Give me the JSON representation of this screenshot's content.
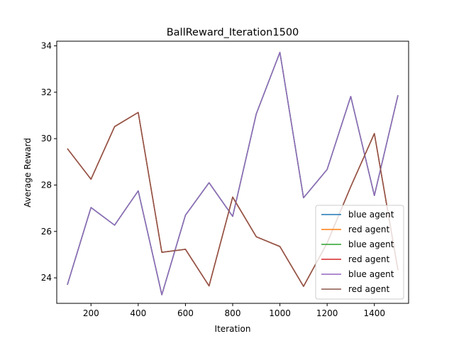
{
  "chart_data": {
    "type": "line",
    "title": "BallReward_Iteration1500",
    "xlabel": "Iteration",
    "ylabel": "Average Reward",
    "xlim": [
      55,
      1545
    ],
    "ylim": [
      22.9,
      34.2
    ],
    "xticks": [
      200,
      400,
      600,
      800,
      1000,
      1200,
      1400
    ],
    "yticks": [
      24,
      26,
      28,
      30,
      32,
      34
    ],
    "grid": false,
    "legend_position": "lower-right",
    "x": [
      100,
      200,
      300,
      400,
      500,
      600,
      700,
      800,
      900,
      1000,
      1100,
      1200,
      1300,
      1400,
      1500
    ],
    "series": [
      {
        "name": "blue agent",
        "color": "#1f77b4",
        "values": [
          23.7,
          27.03,
          26.27,
          27.75,
          23.27,
          26.7,
          28.1,
          26.65,
          31.07,
          33.72,
          27.45,
          28.67,
          31.82,
          27.55,
          31.87
        ]
      },
      {
        "name": "red agent",
        "color": "#ff7f0e",
        "values": [
          29.57,
          28.25,
          30.52,
          31.13,
          25.1,
          25.23,
          23.65,
          27.48,
          25.77,
          25.35,
          23.63,
          25.5,
          27.93,
          30.22,
          24.33
        ]
      },
      {
        "name": "blue agent",
        "color": "#2ca02c",
        "values": [
          23.7,
          27.03,
          26.27,
          27.75,
          23.27,
          26.7,
          28.1,
          26.65,
          31.07,
          33.72,
          27.45,
          28.67,
          31.82,
          27.55,
          31.87
        ]
      },
      {
        "name": "red agent",
        "color": "#d62728",
        "values": [
          29.57,
          28.25,
          30.52,
          31.13,
          25.1,
          25.23,
          23.65,
          27.48,
          25.77,
          25.35,
          23.63,
          25.5,
          27.93,
          30.22,
          24.33
        ]
      },
      {
        "name": "blue agent",
        "color": "#9467bd",
        "values": [
          23.7,
          27.03,
          26.27,
          27.75,
          23.27,
          26.7,
          28.1,
          26.65,
          31.07,
          33.72,
          27.45,
          28.67,
          31.82,
          27.55,
          31.87
        ]
      },
      {
        "name": "red agent",
        "color": "#8c564b",
        "values": [
          29.57,
          28.25,
          30.52,
          31.13,
          25.1,
          25.23,
          23.65,
          27.48,
          25.77,
          25.35,
          23.63,
          25.5,
          27.93,
          30.22,
          24.33
        ]
      }
    ]
  }
}
